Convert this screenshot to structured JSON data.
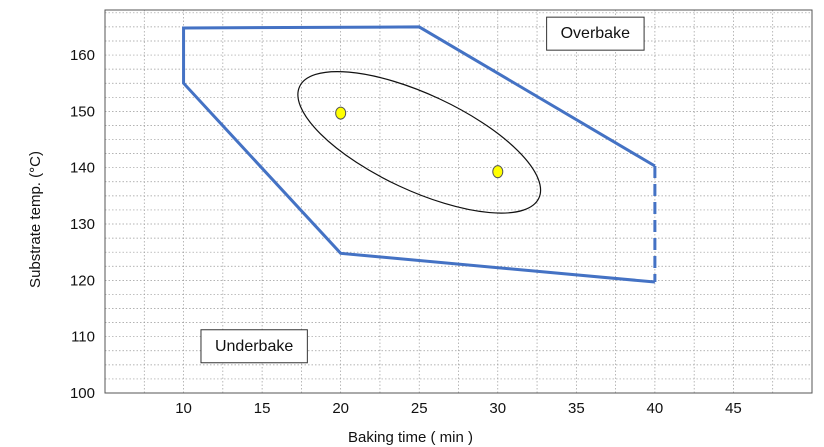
{
  "chart_data": {
    "type": "scatter",
    "xlabel": "Baking time ( min )",
    "ylabel": "Substrate temp. (°C)",
    "xlim": [
      5,
      50
    ],
    "ylim": [
      100,
      168
    ],
    "x_ticks": [
      10,
      15,
      20,
      25,
      30,
      35,
      40,
      45
    ],
    "y_ticks": [
      100,
      110,
      120,
      130,
      140,
      150,
      160
    ],
    "grid": "dotted",
    "process_window": {
      "color": "#4472C4",
      "solid_boundary": [
        {
          "x": 40,
          "y": 119.7
        },
        {
          "x": 20,
          "y": 124.8
        },
        {
          "x": 10,
          "y": 155
        },
        {
          "x": 10,
          "y": 164.8
        },
        {
          "x": 25,
          "y": 165
        },
        {
          "x": 40,
          "y": 140.3
        }
      ],
      "dashed_boundary": [
        {
          "x": 40,
          "y": 140.3
        },
        {
          "x": 40,
          "y": 119.7
        }
      ]
    },
    "optimum_ellipse": {
      "cx": 25,
      "cy": 144.5,
      "rx": 8,
      "ry": 11.5,
      "color": "#111111"
    },
    "points": [
      {
        "x": 20,
        "y": 149.7
      },
      {
        "x": 30,
        "y": 139.3
      }
    ],
    "point_color": "#FFFF00",
    "annotations": [
      {
        "text": "Overbake",
        "x": 34,
        "y": 163
      },
      {
        "text": "Underbake",
        "x": 12,
        "y": 107.5
      }
    ]
  }
}
